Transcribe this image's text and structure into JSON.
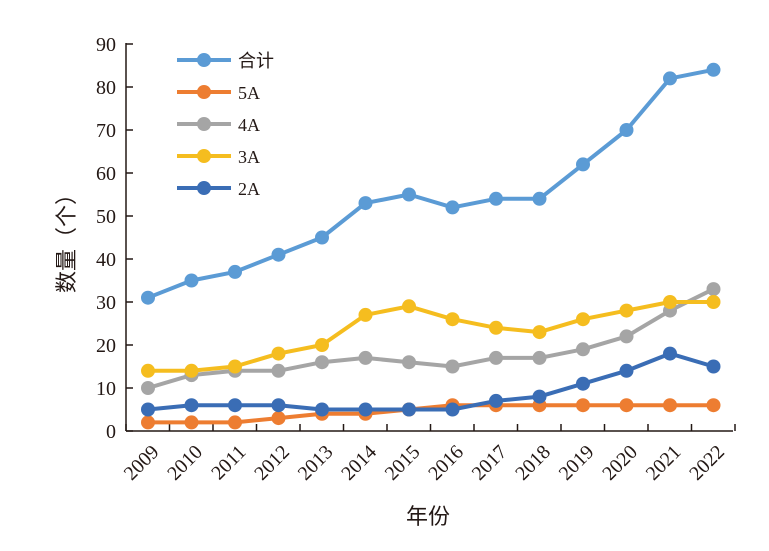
{
  "chart_data": {
    "type": "line",
    "title": "",
    "xlabel": "年份",
    "ylabel": "数量（个）",
    "ylim": [
      0,
      90
    ],
    "yticks": [
      0,
      10,
      20,
      30,
      40,
      50,
      60,
      70,
      80,
      90
    ],
    "categories": [
      "2009",
      "2010",
      "2011",
      "2012",
      "2013",
      "2014",
      "2015",
      "2016",
      "2017",
      "2018",
      "2019",
      "2020",
      "2021",
      "2022"
    ],
    "legend_position": "top-left",
    "grid": false,
    "series": [
      {
        "name": "合计",
        "color": "#5b9bd5",
        "values": [
          31,
          35,
          37,
          41,
          45,
          53,
          55,
          52,
          54,
          54,
          62,
          70,
          82,
          84
        ]
      },
      {
        "name": "5A",
        "color": "#ed7d31",
        "values": [
          2,
          2,
          2,
          3,
          4,
          4,
          5,
          6,
          6,
          6,
          6,
          6,
          6,
          6
        ]
      },
      {
        "name": "4A",
        "color": "#a5a5a5",
        "values": [
          10,
          13,
          14,
          14,
          16,
          17,
          16,
          15,
          17,
          17,
          19,
          22,
          28,
          33
        ]
      },
      {
        "name": "3A",
        "color": "#f5bd1f",
        "values": [
          14,
          14,
          15,
          18,
          20,
          27,
          29,
          26,
          24,
          23,
          26,
          28,
          30,
          30
        ]
      },
      {
        "name": "2A",
        "color": "#3a6db5",
        "values": [
          5,
          6,
          6,
          6,
          5,
          5,
          5,
          5,
          7,
          8,
          11,
          14,
          18,
          15
        ]
      }
    ]
  }
}
